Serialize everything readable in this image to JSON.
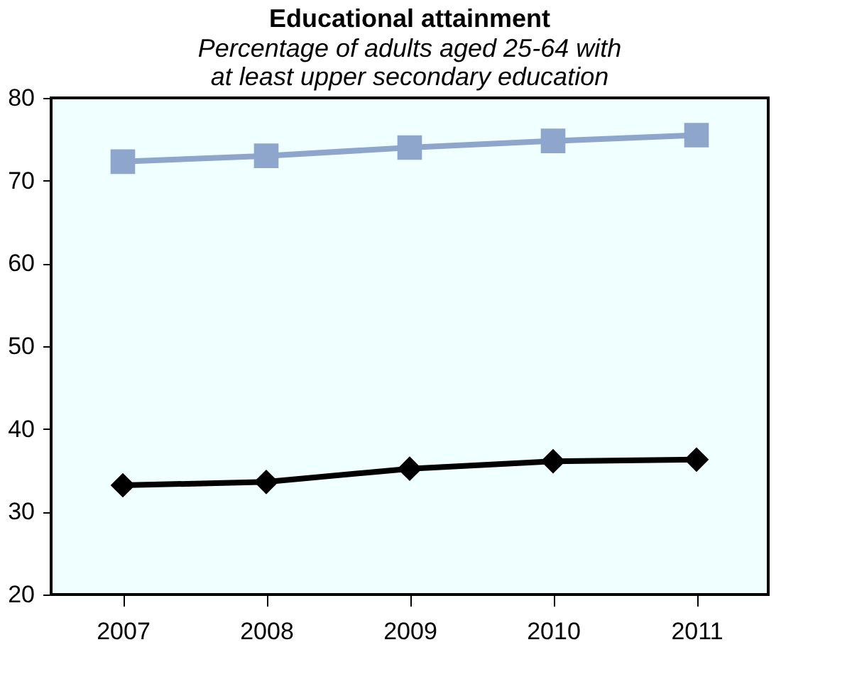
{
  "chart_data": {
    "type": "line",
    "title": "Educational attainment",
    "subtitle": "Percentage of adults aged 25-64 with at least upper secondary education",
    "categories": [
      "2007",
      "2008",
      "2009",
      "2010",
      "2011"
    ],
    "series": [
      {
        "color": "#8fa6cc",
        "marker": "square",
        "values": [
          72.3,
          73.0,
          74.0,
          74.8,
          75.5
        ]
      },
      {
        "color": "#000000",
        "marker": "diamond",
        "values": [
          33.2,
          33.6,
          35.2,
          36.1,
          36.3
        ]
      }
    ],
    "ylim": [
      20,
      80
    ],
    "yticks": [
      20,
      30,
      40,
      50,
      60,
      70,
      80
    ]
  }
}
